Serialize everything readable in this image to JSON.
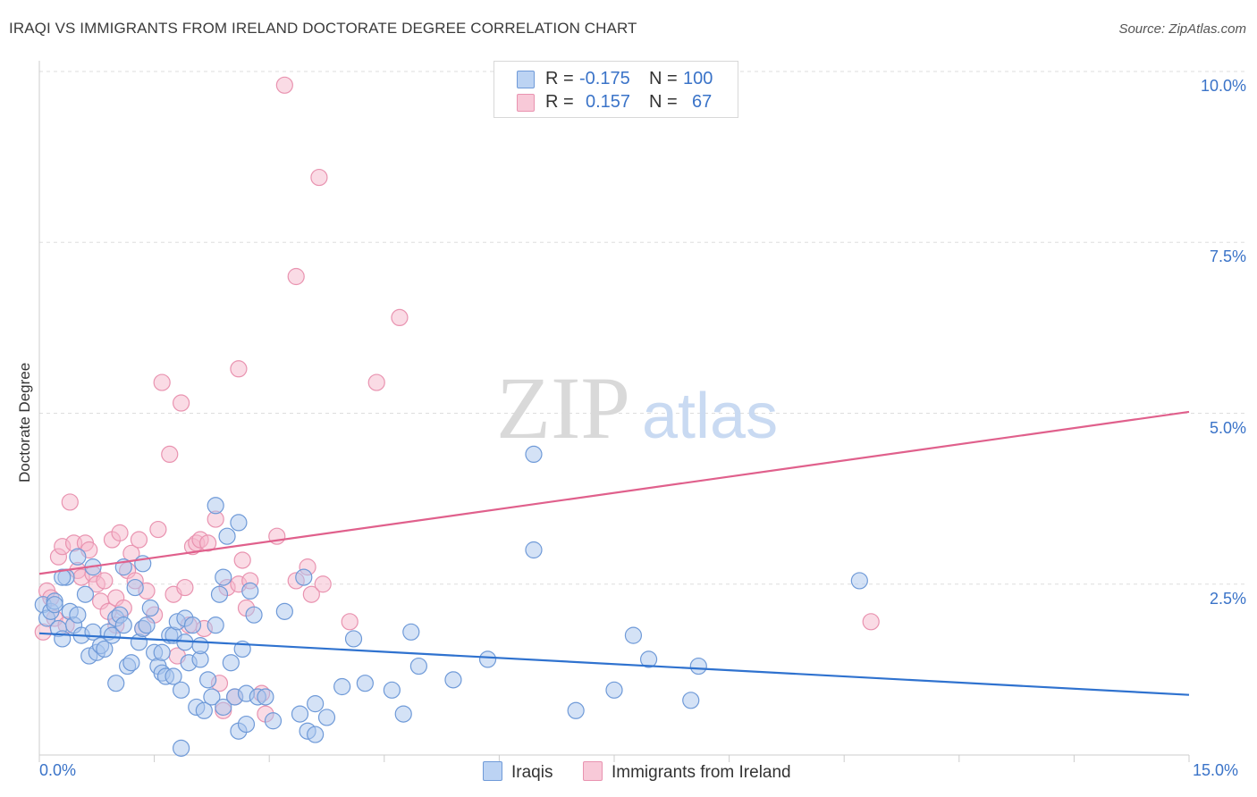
{
  "header": {
    "title": "IRAQI VS IMMIGRANTS FROM IRELAND DOCTORATE DEGREE CORRELATION CHART",
    "source": "Source: ZipAtlas.com"
  },
  "watermark": {
    "zip": "ZIP",
    "atlas": "atlas"
  },
  "legend_top": {
    "r_label": "R =",
    "n_label": "N =",
    "rows": [
      {
        "r": "-0.175",
        "n": "100"
      },
      {
        "r": "0.157",
        "n": "67"
      }
    ]
  },
  "colors": {
    "iraqi_fill": "#a9c6ee",
    "iraqi_stroke": "#6f9ad8",
    "iraqi_line": "#2f72cf",
    "ireland_fill": "#f6b8cb",
    "ireland_stroke": "#e993b0",
    "ireland_line": "#e0608c",
    "tick_text": "#3a73c8",
    "grid": "#dddddd"
  },
  "chart_data": {
    "type": "scatter",
    "title": "IRAQI VS IMMIGRANTS FROM IRELAND DOCTORATE DEGREE CORRELATION CHART",
    "xlabel": "",
    "ylabel": "Doctorate Degree",
    "xlim": [
      0,
      15
    ],
    "ylim": [
      0,
      10
    ],
    "x_tick_labels": [
      "0.0%",
      "15.0%"
    ],
    "y_ticks": [
      2.5,
      5.0,
      7.5,
      10.0
    ],
    "y_tick_labels": [
      "2.5%",
      "5.0%",
      "7.5%",
      "10.0%"
    ],
    "grid": true,
    "legend_position": "bottom-center",
    "series": [
      {
        "name": "Iraqis",
        "r": -0.175,
        "n": 100,
        "trend": {
          "x": [
            0,
            15
          ],
          "y": [
            1.78,
            0.88
          ]
        },
        "points": [
          [
            0.05,
            2.2
          ],
          [
            0.1,
            2.0
          ],
          [
            0.15,
            2.1
          ],
          [
            0.2,
            2.25
          ],
          [
            0.25,
            1.85
          ],
          [
            0.3,
            1.7
          ],
          [
            0.35,
            2.6
          ],
          [
            0.4,
            2.1
          ],
          [
            0.45,
            1.9
          ],
          [
            0.5,
            2.05
          ],
          [
            0.5,
            2.9
          ],
          [
            0.55,
            1.75
          ],
          [
            0.6,
            2.35
          ],
          [
            0.65,
            1.45
          ],
          [
            0.7,
            1.8
          ],
          [
            0.7,
            2.75
          ],
          [
            0.75,
            1.5
          ],
          [
            0.8,
            1.6
          ],
          [
            0.85,
            1.55
          ],
          [
            0.9,
            1.8
          ],
          [
            0.95,
            1.75
          ],
          [
            1.0,
            2.0
          ],
          [
            1.0,
            1.05
          ],
          [
            1.05,
            2.05
          ],
          [
            1.1,
            1.9
          ],
          [
            1.1,
            2.75
          ],
          [
            1.15,
            1.3
          ],
          [
            1.2,
            1.35
          ],
          [
            1.25,
            2.45
          ],
          [
            1.3,
            1.65
          ],
          [
            1.35,
            1.85
          ],
          [
            1.35,
            2.8
          ],
          [
            1.4,
            1.9
          ],
          [
            1.45,
            2.15
          ],
          [
            1.5,
            1.5
          ],
          [
            1.55,
            1.3
          ],
          [
            1.6,
            1.2
          ],
          [
            1.6,
            1.5
          ],
          [
            1.65,
            1.15
          ],
          [
            1.7,
            1.75
          ],
          [
            1.75,
            1.75
          ],
          [
            1.75,
            1.15
          ],
          [
            1.8,
            1.95
          ],
          [
            1.85,
            0.95
          ],
          [
            1.9,
            1.65
          ],
          [
            1.9,
            2.0
          ],
          [
            1.95,
            1.35
          ],
          [
            2.0,
            1.9
          ],
          [
            2.05,
            0.7
          ],
          [
            2.1,
            1.4
          ],
          [
            2.1,
            1.6
          ],
          [
            2.15,
            0.65
          ],
          [
            2.2,
            1.1
          ],
          [
            2.25,
            0.85
          ],
          [
            2.3,
            1.9
          ],
          [
            2.3,
            3.65
          ],
          [
            2.35,
            2.35
          ],
          [
            2.4,
            0.7
          ],
          [
            2.4,
            2.6
          ],
          [
            2.45,
            3.2
          ],
          [
            2.5,
            1.35
          ],
          [
            2.55,
            0.85
          ],
          [
            2.6,
            0.35
          ],
          [
            2.6,
            3.4
          ],
          [
            2.65,
            1.55
          ],
          [
            2.7,
            0.45
          ],
          [
            2.7,
            0.9
          ],
          [
            2.75,
            2.4
          ],
          [
            2.8,
            2.05
          ],
          [
            2.85,
            0.85
          ],
          [
            2.95,
            0.85
          ],
          [
            3.05,
            0.5
          ],
          [
            3.2,
            2.1
          ],
          [
            3.4,
            0.6
          ],
          [
            3.45,
            2.6
          ],
          [
            3.5,
            0.35
          ],
          [
            3.6,
            0.75
          ],
          [
            3.6,
            0.3
          ],
          [
            3.75,
            0.55
          ],
          [
            3.95,
            1.0
          ],
          [
            4.1,
            1.7
          ],
          [
            4.25,
            1.05
          ],
          [
            4.6,
            0.95
          ],
          [
            4.75,
            0.6
          ],
          [
            4.85,
            1.8
          ],
          [
            4.95,
            1.3
          ],
          [
            5.4,
            1.1
          ],
          [
            5.85,
            1.4
          ],
          [
            6.45,
            4.4
          ],
          [
            6.45,
            3.0
          ],
          [
            7.0,
            0.65
          ],
          [
            7.5,
            0.95
          ],
          [
            7.75,
            1.75
          ],
          [
            7.95,
            1.4
          ],
          [
            8.5,
            0.8
          ],
          [
            8.6,
            1.3
          ],
          [
            10.7,
            2.55
          ],
          [
            1.85,
            0.1
          ],
          [
            0.2,
            2.2
          ],
          [
            0.3,
            2.6
          ]
        ]
      },
      {
        "name": "Immigrants from Ireland",
        "r": 0.157,
        "n": 67,
        "trend": {
          "x": [
            0,
            15
          ],
          "y": [
            2.65,
            5.02
          ]
        },
        "points": [
          [
            0.05,
            1.8
          ],
          [
            0.1,
            2.4
          ],
          [
            0.15,
            2.3
          ],
          [
            0.2,
            2.0
          ],
          [
            0.25,
            2.9
          ],
          [
            0.3,
            3.05
          ],
          [
            0.35,
            1.9
          ],
          [
            0.4,
            3.7
          ],
          [
            0.45,
            3.1
          ],
          [
            0.5,
            2.7
          ],
          [
            0.55,
            2.6
          ],
          [
            0.6,
            3.1
          ],
          [
            0.65,
            3.0
          ],
          [
            0.7,
            2.65
          ],
          [
            0.75,
            2.5
          ],
          [
            0.8,
            2.25
          ],
          [
            0.85,
            2.55
          ],
          [
            0.9,
            2.1
          ],
          [
            0.95,
            3.15
          ],
          [
            1.0,
            2.3
          ],
          [
            1.0,
            1.9
          ],
          [
            1.05,
            3.25
          ],
          [
            1.1,
            2.15
          ],
          [
            1.15,
            2.7
          ],
          [
            1.2,
            2.95
          ],
          [
            1.25,
            2.55
          ],
          [
            1.3,
            3.15
          ],
          [
            1.35,
            1.85
          ],
          [
            1.4,
            2.4
          ],
          [
            1.5,
            2.05
          ],
          [
            1.55,
            3.3
          ],
          [
            1.6,
            5.45
          ],
          [
            1.7,
            4.4
          ],
          [
            1.75,
            2.35
          ],
          [
            1.8,
            1.45
          ],
          [
            1.85,
            5.15
          ],
          [
            1.9,
            2.45
          ],
          [
            1.95,
            1.9
          ],
          [
            2.0,
            3.05
          ],
          [
            2.05,
            3.1
          ],
          [
            2.1,
            3.15
          ],
          [
            2.15,
            1.85
          ],
          [
            2.2,
            3.1
          ],
          [
            2.3,
            3.45
          ],
          [
            2.35,
            1.05
          ],
          [
            2.4,
            0.65
          ],
          [
            2.45,
            2.45
          ],
          [
            2.55,
            0.85
          ],
          [
            2.6,
            2.5
          ],
          [
            2.6,
            5.65
          ],
          [
            2.65,
            2.85
          ],
          [
            2.7,
            2.15
          ],
          [
            2.75,
            2.55
          ],
          [
            2.9,
            0.9
          ],
          [
            2.95,
            0.6
          ],
          [
            3.1,
            3.2
          ],
          [
            3.2,
            9.8
          ],
          [
            3.35,
            2.55
          ],
          [
            3.35,
            7.0
          ],
          [
            3.5,
            2.75
          ],
          [
            3.55,
            2.35
          ],
          [
            3.65,
            8.45
          ],
          [
            3.7,
            2.5
          ],
          [
            4.05,
            1.95
          ],
          [
            4.4,
            5.45
          ],
          [
            4.7,
            6.4
          ],
          [
            10.85,
            1.95
          ]
        ]
      }
    ]
  },
  "legend_bottom": [
    {
      "label": "Iraqis"
    },
    {
      "label": "Immigrants from Ireland"
    }
  ]
}
